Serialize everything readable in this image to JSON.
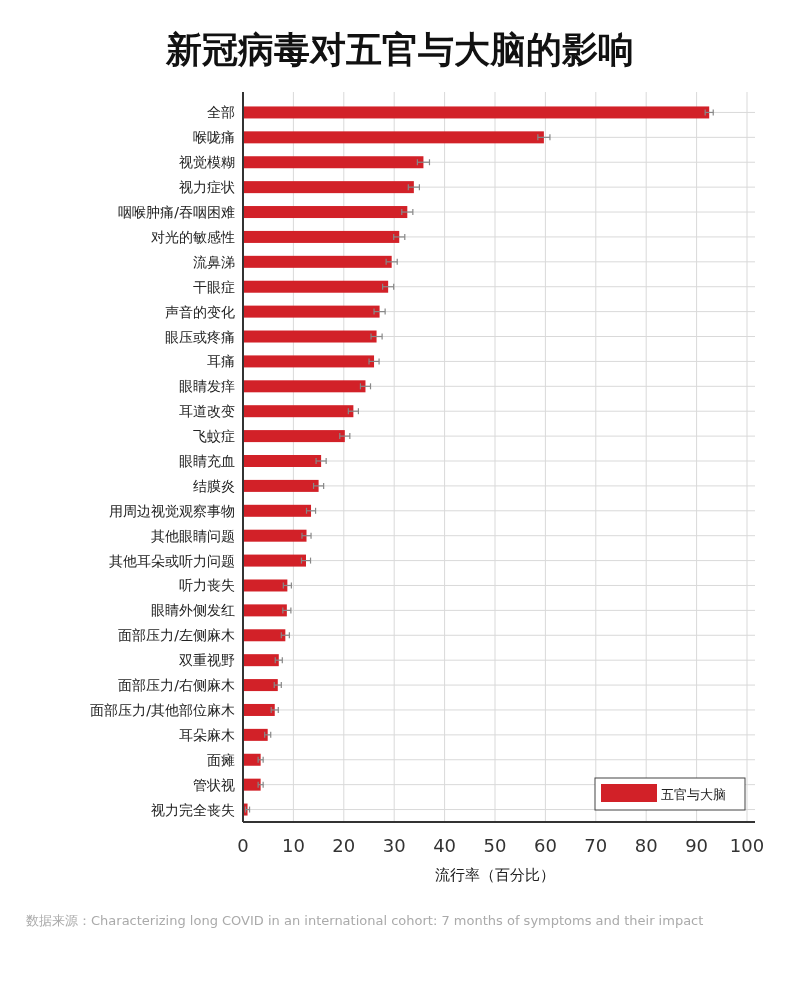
{
  "chart_data": {
    "type": "bar",
    "orientation": "horizontal",
    "title": "新冠病毒对五官与大脑的影响",
    "xlabel": "流行率（百分比）",
    "categories": [
      "全部",
      "喉咙痛",
      "视觉模糊",
      "视力症状",
      "咽喉肿痛/吞咽困难",
      "对光的敏感性",
      "流鼻涕",
      "干眼症",
      "声音的变化",
      "眼压或疼痛",
      "耳痛",
      "眼睛发痒",
      "耳道改变",
      "飞蚊症",
      "眼睛充血",
      "结膜炎",
      "用周边视觉观察事物",
      "其他眼睛问题",
      "其他耳朵或听力问题",
      "听力丧失",
      "眼睛外侧发红",
      "面部压力/左侧麻木",
      "双重视野",
      "面部压力/右侧麻木",
      "面部压力/其他部位麻木",
      "耳朵麻木",
      "面瘫",
      "管状视",
      "视力完全丧失"
    ],
    "series": [
      {
        "name": "五官与大脑",
        "color": "#d22128",
        "values": [
          92.5,
          59.7,
          35.8,
          33.9,
          32.6,
          31.0,
          29.5,
          28.8,
          27.1,
          26.5,
          26.0,
          24.3,
          21.9,
          20.2,
          15.5,
          15.0,
          13.5,
          12.6,
          12.5,
          8.8,
          8.7,
          8.4,
          7.1,
          6.9,
          6.3,
          4.9,
          3.5,
          3.5,
          0.9
        ],
        "errors": [
          0.8,
          1.2,
          1.2,
          1.1,
          1.1,
          1.1,
          1.1,
          1.1,
          1.1,
          1.1,
          1.0,
          1.0,
          1.0,
          1.0,
          1.0,
          1.0,
          0.9,
          0.9,
          0.9,
          0.8,
          0.8,
          0.8,
          0.7,
          0.7,
          0.7,
          0.6,
          0.5,
          0.5,
          0.4
        ]
      }
    ],
    "xlim": [
      0,
      100
    ],
    "xticks": [
      0,
      10,
      20,
      30,
      40,
      50,
      60,
      70,
      80,
      90,
      100
    ],
    "grid": true,
    "legend": "bottom right",
    "annotations": [
      "数据来源：Characterizing long COVID in an international cohort: 7 months of symptoms and their impact"
    ]
  }
}
